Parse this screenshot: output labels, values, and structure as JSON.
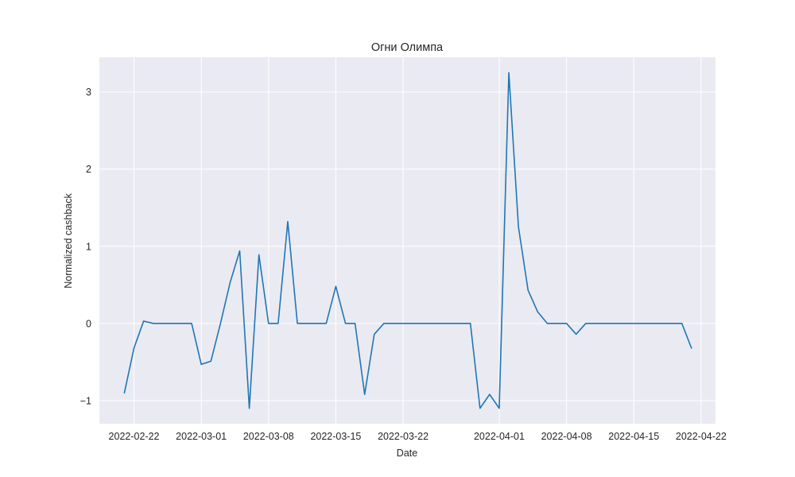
{
  "chart_data": {
    "type": "line",
    "title": "Огни Олимпа",
    "xlabel": "Date",
    "ylabel": "Normalized cashback",
    "grid": true,
    "x_tick_labels": [
      "2022-02-22",
      "2022-03-01",
      "2022-03-08",
      "2022-03-15",
      "2022-03-22",
      "2022-04-01",
      "2022-04-08",
      "2022-04-15",
      "2022-04-22"
    ],
    "y_tick_labels": [
      "−1",
      "0",
      "1",
      "2",
      "3"
    ],
    "y_tick_values": [
      -1,
      0,
      1,
      2,
      3
    ],
    "ylim": [
      -1.3,
      3.45
    ],
    "x_range_days": [
      -3.6,
      60.5
    ],
    "x_tick_days": [
      0,
      7,
      14,
      21,
      28,
      38,
      45,
      52,
      59
    ],
    "series": [
      {
        "name": "Normalized cashback",
        "color": "#1f77b4",
        "x_days": [
          -1,
          0,
          1,
          2,
          3,
          4,
          5,
          6,
          7,
          8,
          9,
          10,
          11,
          12,
          13,
          14,
          15,
          16,
          17,
          18,
          19,
          20,
          21,
          22,
          23,
          24,
          25,
          26,
          27,
          28,
          29,
          30,
          31,
          32,
          33,
          34,
          35,
          36,
          37,
          38,
          39,
          40,
          41,
          42,
          43,
          44,
          45,
          46,
          47,
          48,
          49,
          50,
          51,
          52,
          53,
          54,
          55,
          56,
          57,
          58
        ],
        "values": [
          -0.9,
          -0.32,
          0.03,
          0.0,
          0.0,
          0.0,
          0.0,
          0.0,
          -0.53,
          -0.49,
          0.0,
          0.53,
          0.94,
          -1.1,
          0.89,
          0.0,
          0.0,
          1.32,
          0.0,
          0.0,
          0.0,
          0.0,
          0.48,
          0.0,
          0.0,
          -0.92,
          -0.14,
          0.0,
          0.0,
          0.0,
          0.0,
          0.0,
          0.0,
          0.0,
          0.0,
          0.0,
          0.0,
          -1.1,
          -0.92,
          -1.1,
          3.25,
          1.25,
          0.43,
          0.15,
          0.0,
          0.0,
          0.0,
          -0.14,
          0.0,
          0.0,
          0.0,
          0.0,
          0.0,
          0.0,
          0.0,
          0.0,
          0.0,
          0.0,
          0.0,
          -0.32
        ]
      }
    ],
    "colors": {
      "plot_background": "#eaeaf2",
      "grid": "#ffffff",
      "text": "#262626"
    }
  }
}
